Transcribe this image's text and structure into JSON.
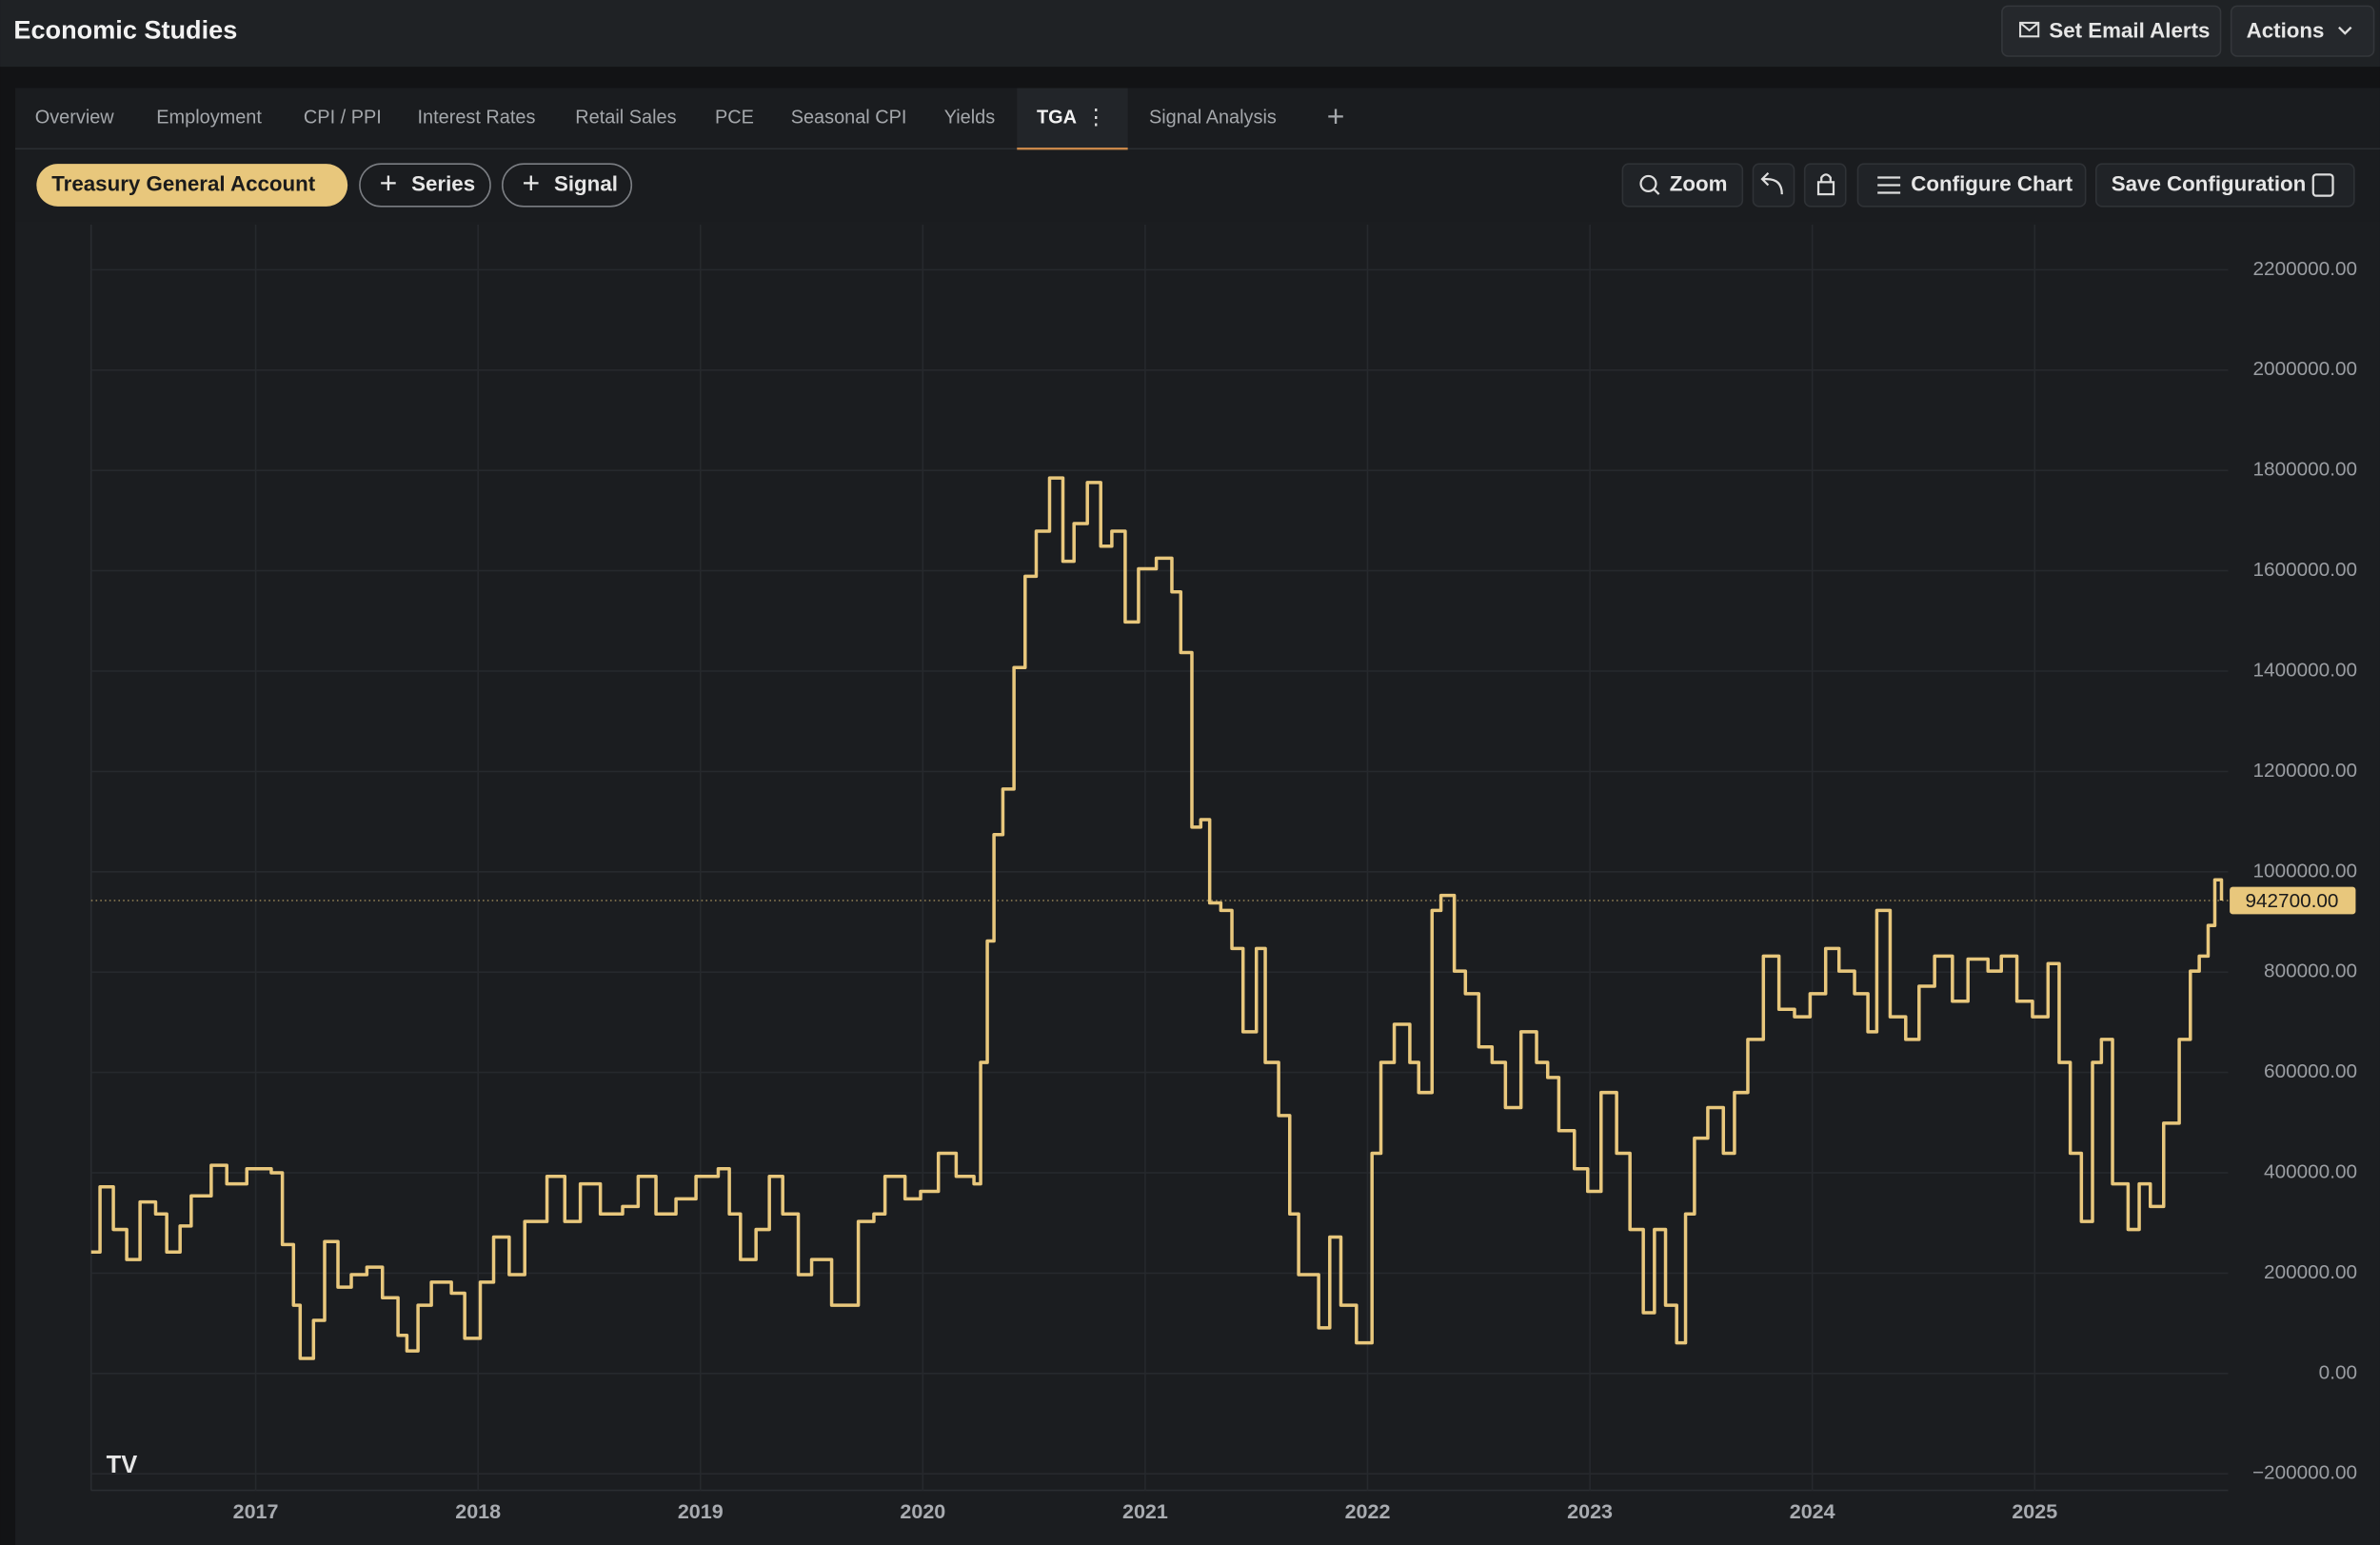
{
  "header": {
    "title": "Economic Studies",
    "buttons": [
      "Set Email Alerts",
      "Actions"
    ]
  },
  "tabs": [
    "Overview",
    "Employment",
    "CPI / PPI",
    "Interest Rates",
    "Retail Sales",
    "PCE",
    "Seasonal CPI",
    "Yields",
    "TGA",
    "Signal Analysis"
  ],
  "active_tab": 8,
  "toolbar": {
    "add_buttons": [
      "Series",
      "Signal"
    ],
    "buttons": [
      "Zoom",
      "Configure Chart",
      "Save Configuration"
    ]
  },
  "chart_data": {
    "type": "line",
    "step": true,
    "x": [
      2016.26,
      2016.3,
      2016.36,
      2016.42,
      2016.48,
      2016.55,
      2016.6,
      2016.66,
      2016.71,
      2016.8,
      2016.87,
      2016.96,
      2017.07,
      2017.12,
      2017.17,
      2017.2,
      2017.26,
      2017.31,
      2017.37,
      2017.43,
      2017.5,
      2017.57,
      2017.64,
      2017.68,
      2017.73,
      2017.79,
      2017.88,
      2017.94,
      2018.01,
      2018.07,
      2018.14,
      2018.21,
      2018.31,
      2018.39,
      2018.46,
      2018.55,
      2018.65,
      2018.72,
      2018.8,
      2018.89,
      2018.98,
      2019.08,
      2019.13,
      2019.18,
      2019.25,
      2019.31,
      2019.37,
      2019.44,
      2019.5,
      2019.59,
      2019.66,
      2019.71,
      2019.78,
      2019.83,
      2019.92,
      2019.99,
      2020.07,
      2020.15,
      2020.23,
      2020.26,
      2020.29,
      2020.32,
      2020.36,
      2020.41,
      2020.46,
      2020.51,
      2020.57,
      2020.63,
      2020.68,
      2020.74,
      2020.8,
      2020.85,
      2020.91,
      2020.97,
      2021.05,
      2021.12,
      2021.16,
      2021.21,
      2021.25,
      2021.29,
      2021.34,
      2021.39,
      2021.44,
      2021.5,
      2021.54,
      2021.6,
      2021.65,
      2021.69,
      2021.73,
      2021.78,
      2021.83,
      2021.88,
      2021.95,
      2022.02,
      2022.06,
      2022.12,
      2022.19,
      2022.23,
      2022.29,
      2022.33,
      2022.39,
      2022.44,
      2022.5,
      2022.56,
      2022.62,
      2022.69,
      2022.76,
      2022.81,
      2022.86,
      2022.93,
      2022.99,
      2023.05,
      2023.12,
      2023.18,
      2023.24,
      2023.29,
      2023.34,
      2023.39,
      2023.43,
      2023.47,
      2023.53,
      2023.6,
      2023.65,
      2023.71,
      2023.78,
      2023.85,
      2023.92,
      2023.99,
      2024.06,
      2024.12,
      2024.19,
      2024.25,
      2024.29,
      2024.35,
      2024.42,
      2024.48,
      2024.55,
      2024.63,
      2024.7,
      2024.79,
      2024.85,
      2024.92,
      2024.99,
      2025.06,
      2025.11,
      2025.16,
      2025.21,
      2025.26,
      2025.3,
      2025.35,
      2025.42,
      2025.47,
      2025.52,
      2025.58,
      2025.65,
      2025.7,
      2025.74,
      2025.78,
      2025.81,
      2025.84
    ],
    "series": [
      {
        "name": "Treasury General Account",
        "color": "#e8c77c",
        "values": [
          242000,
          372000,
          287000,
          227000,
          342000,
          318000,
          242000,
          294000,
          354000,
          415000,
          378000,
          408000,
          400000,
          257000,
          136000,
          30000,
          106000,
          263000,
          172000,
          197000,
          212000,
          151000,
          76000,
          45000,
          136000,
          182000,
          160000,
          70000,
          182000,
          272000,
          197000,
          303000,
          393000,
          303000,
          378000,
          318000,
          333000,
          393000,
          318000,
          348000,
          393000,
          408000,
          318000,
          227000,
          287000,
          393000,
          318000,
          197000,
          227000,
          136000,
          136000,
          303000,
          318000,
          393000,
          348000,
          363000,
          439000,
          393000,
          378000,
          620000,
          862000,
          1074000,
          1165000,
          1407000,
          1589000,
          1679000,
          1785000,
          1619000,
          1694000,
          1776000,
          1649000,
          1679000,
          1498000,
          1604000,
          1625000,
          1558000,
          1437000,
          1089000,
          1104000,
          938000,
          923000,
          847000,
          681000,
          847000,
          620000,
          514000,
          318000,
          197000,
          197000,
          91000,
          272000,
          136000,
          61000,
          439000,
          620000,
          696000,
          620000,
          560000,
          923000,
          953000,
          802000,
          757000,
          651000,
          620000,
          530000,
          681000,
          620000,
          590000,
          484000,
          408000,
          363000,
          560000,
          439000,
          287000,
          121000,
          287000,
          136000,
          61000,
          318000,
          469000,
          530000,
          439000,
          560000,
          666000,
          832000,
          726000,
          711000,
          757000,
          847000,
          802000,
          757000,
          681000,
          923000,
          711000,
          666000,
          772000,
          832000,
          742000,
          826000,
          802000,
          832000,
          742000,
          711000,
          817000,
          620000,
          439000,
          303000,
          620000,
          666000,
          378000,
          287000,
          378000,
          333000,
          499000,
          666000,
          802000,
          832000,
          893000,
          984000,
          942700
        ]
      }
    ],
    "last_label": {
      "value": 942700,
      "label": "942700.00"
    },
    "xlim": [
      2016.26,
      2025.87
    ],
    "xticks": [
      2017,
      2018,
      2019,
      2020,
      2021,
      2022,
      2023,
      2024,
      2025
    ],
    "ylim": [
      -233000,
      2290000
    ],
    "yticks": [
      {
        "value": -200000,
        "label": "−200000.00"
      },
      {
        "value": 0,
        "label": "0.00"
      },
      {
        "value": 200000,
        "label": "200000.00"
      },
      {
        "value": 400000,
        "label": "400000.00"
      },
      {
        "value": 600000,
        "label": "600000.00"
      },
      {
        "value": 800000,
        "label": "800000.00"
      },
      {
        "value": 1000000,
        "label": "1000000.00"
      },
      {
        "value": 1200000,
        "label": "1200000.00"
      },
      {
        "value": 1400000,
        "label": "1400000.00"
      },
      {
        "value": 1600000,
        "label": "1600000.00"
      },
      {
        "value": 1800000,
        "label": "1800000.00"
      },
      {
        "value": 2000000,
        "label": "2000000.00"
      },
      {
        "value": 2200000,
        "label": "2200000.00"
      }
    ],
    "grid": true
  }
}
